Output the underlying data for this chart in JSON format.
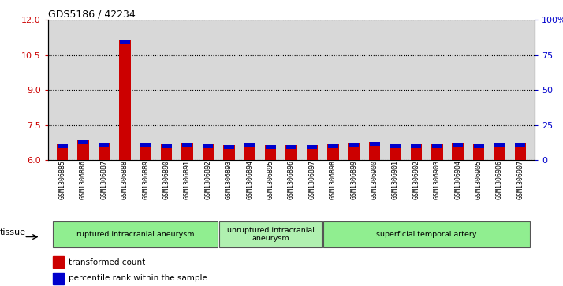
{
  "title": "GDS5186 / 42234",
  "samples": [
    "GSM1306885",
    "GSM1306886",
    "GSM1306887",
    "GSM1306888",
    "GSM1306889",
    "GSM1306890",
    "GSM1306891",
    "GSM1306892",
    "GSM1306893",
    "GSM1306894",
    "GSM1306895",
    "GSM1306896",
    "GSM1306897",
    "GSM1306898",
    "GSM1306899",
    "GSM1306900",
    "GSM1306901",
    "GSM1306902",
    "GSM1306903",
    "GSM1306904",
    "GSM1306905",
    "GSM1306906",
    "GSM1306907"
  ],
  "red_values": [
    6.7,
    6.85,
    6.75,
    11.15,
    6.75,
    6.7,
    6.75,
    6.7,
    6.65,
    6.75,
    6.65,
    6.65,
    6.65,
    6.7,
    6.75,
    6.8,
    6.7,
    6.7,
    6.7,
    6.75,
    6.7,
    6.75,
    6.75
  ],
  "blue_values": [
    3,
    14,
    4,
    95,
    8,
    5,
    13,
    4,
    9,
    8,
    7,
    4,
    5,
    4,
    5,
    15,
    10,
    6,
    4,
    7,
    8,
    5,
    7
  ],
  "ylim_left": [
    6,
    12
  ],
  "ylim_right": [
    0,
    100
  ],
  "yticks_left": [
    6,
    7.5,
    9,
    10.5,
    12
  ],
  "yticks_right": [
    0,
    25,
    50,
    75,
    100
  ],
  "ytick_labels_right": [
    "0",
    "25",
    "50",
    "75",
    "100%"
  ],
  "groups": [
    {
      "label": "ruptured intracranial aneurysm",
      "start": 0,
      "end": 8,
      "color": "#90EE90"
    },
    {
      "label": "unruptured intracranial\naneurysm",
      "start": 8,
      "end": 13,
      "color": "#b0f0b0"
    },
    {
      "label": "superficial temporal artery",
      "start": 13,
      "end": 23,
      "color": "#90EE90"
    }
  ],
  "tissue_label": "tissue",
  "legend_red": "transformed count",
  "legend_blue": "percentile rank within the sample",
  "bar_width": 0.55,
  "plot_bg": "#d8d8d8",
  "red_color": "#cc0000",
  "blue_color": "#0000cc",
  "blue_bar_height": 0.18
}
